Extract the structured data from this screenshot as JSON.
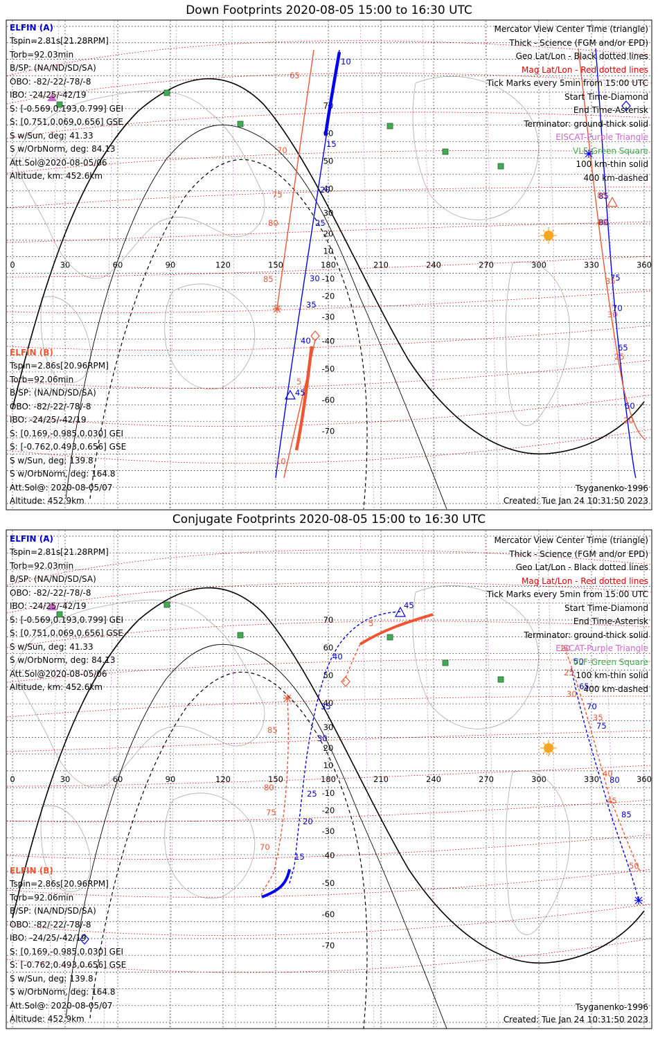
{
  "panels": [
    {
      "title": "Down Footprints 2020-08-05 15:00 to 16:30 UTC",
      "elfin_a": {
        "name": "ELFIN (A)",
        "lines": [
          "Tspin=2.81s[21.28RPM]",
          "Torb=92.03min",
          "B/SP: (NA/ND/SD/SA)",
          "OBO: -82/-22/-78/-8",
          "IBO: -24/25/-42/19",
          "S: [-0.569,0.193,0.799] GEI",
          "S: [0.751,0.069,0.656] GSE",
          "S w/Sun, deg: 41.33",
          "S w/OrbNorm, deg: 84.13",
          "Att.Sol@2020-08-05/06",
          "Altitude, km: 452.6km"
        ]
      },
      "elfin_b": {
        "name": "ELFIN (B)",
        "lines": [
          "Tspin=2.86s[20.96RPM]",
          "Torb=92.06min",
          "B/SP: (NA/ND/SD/SA)",
          "OBO: -82/-22/-78/-8",
          "IBO: -24/25/-42/19",
          "S: [0.169,-0.985,0.030] GEI",
          "S: [-0.762,0.493,0.656] GSE",
          "S w/Sun, deg: 139.8",
          "S w/OrbNorm, deg: 164.8",
          "Att.Sol@: 2020-08-05/07",
          "Altitude: 452.9km"
        ]
      },
      "legend": [
        "Mercator View Center Time (triangle)",
        "Thick - Science (FGM and/or EPD)",
        "Geo Lat/Lon - Black dotted lines",
        "Mag Lat/Lon - Red dotted lines",
        "Tick Marks every 5min from 15:00 UTC",
        "Start Time-Diamond",
        "End Time-Asterisk",
        "Terminator: ground-thick solid",
        "EISCAT-Purple Triangle",
        "VLF-Green Square",
        "100 km-thin solid",
        "400 km-dashed"
      ],
      "model": "Tsyganenko-1996",
      "created": "Created: Tue Jan 24 10:31:50 2023",
      "lon_ticks": [
        "0",
        "30",
        "60",
        "90",
        "120",
        "150",
        "180",
        "210",
        "240",
        "270",
        "300",
        "330",
        "360"
      ],
      "lat_ticks": [
        "70",
        "60",
        "50",
        "40",
        "30",
        "20",
        "10",
        "-10",
        "-20",
        "-30",
        "-40",
        "-50",
        "-60",
        "-70"
      ],
      "a_track_ticks": [
        "10",
        "15",
        "20",
        "25",
        "30",
        "35",
        "40",
        "45",
        "60",
        "65",
        "70",
        "75",
        "80",
        "85"
      ],
      "b_track_ticks": [
        "65",
        "70",
        "75",
        "80",
        "85",
        "5",
        "10",
        "20",
        "25",
        "30",
        "35",
        "80",
        "85"
      ]
    },
    {
      "title": "Conjugate Footprints 2020-08-05 15:00 to 16:30 UTC",
      "elfin_a": {
        "name": "ELFIN (A)",
        "lines": [
          "Tspin=2.81s[21.28RPM]",
          "Torb=92.03min",
          "B/SP: (NA/ND/SD/SA)",
          "OBO: -82/-22/-78/-8",
          "IBO: -24/25/-42/19",
          "S: [-0.569,0.193,0.799] GEI",
          "S: [0.751,0.069,0.656] GSE",
          "S w/Sun, deg: 41.33",
          "S w/OrbNorm, deg: 84.13",
          "Att.Sol@2020-08-05/06",
          "Altitude, km: 452.6km"
        ]
      },
      "elfin_b": {
        "name": "ELFIN (B)",
        "lines": [
          "Tspin=2.86s[20.96RPM]",
          "Torb=92.06min",
          "B/SP: (NA/ND/SD/SA)",
          "OBO: -82/-22/-78/-8",
          "IBO: -24/25/-42/19",
          "S: [0.169,-0.985,0.030] GEI",
          "S: [-0.762,0.493,0.656] GSE",
          "S w/Sun, deg: 139.8",
          "S w/OrbNorm, deg: 164.8",
          "Att.Sol@: 2020-08-05/07",
          "Altitude: 452.9km"
        ]
      },
      "legend": [
        "Mercator View Center Time (triangle)",
        "Thick - Science (FGM and/or EPD)",
        "Geo Lat/Lon - Black dotted lines",
        "Mag Lat/Lon - Red dotted lines",
        "Tick Marks every 5min from 15:00 UTC",
        "Start Time-Diamond",
        "End Time-Asterisk",
        "Terminator: ground-thick solid",
        "EISCAT-Purple Triangle",
        "VLF-Green Square",
        "100 km-thin solid",
        "400 km-dashed"
      ],
      "model": "Tsyganenko-1996",
      "created": "Created: Tue Jan 24 10:31:50 2023",
      "lon_ticks": [
        "0",
        "30",
        "60",
        "90",
        "120",
        "150",
        "180",
        "210",
        "240",
        "270",
        "300",
        "330",
        "360"
      ],
      "lat_ticks": [
        "70",
        "60",
        "50",
        "40",
        "30",
        "20",
        "10",
        "-10",
        "-20",
        "-30",
        "-40",
        "-50",
        "-60",
        "-70"
      ],
      "a_track_ticks": [
        "45",
        "40",
        "35",
        "30",
        "25",
        "20",
        "15",
        "50",
        "65",
        "70",
        "75",
        "80",
        "85"
      ],
      "b_track_ticks": [
        "5",
        "85",
        "80",
        "75",
        "70",
        "20",
        "25",
        "30",
        "35",
        "40",
        "45",
        "50"
      ]
    }
  ]
}
